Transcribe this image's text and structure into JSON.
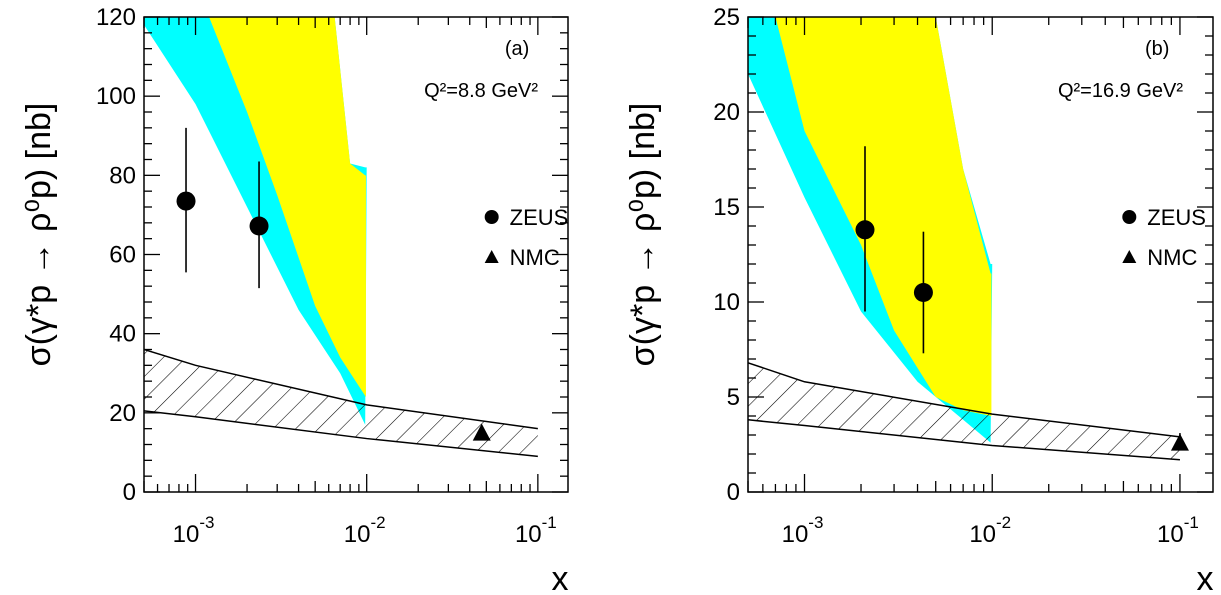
{
  "chart_data": [
    {
      "type": "scatter",
      "panel": "(a)",
      "annotation": "Q²=8.8 GeV²",
      "xlabel": "x",
      "ylabel": "σ(γ*p → ρ⁰p) [nb]",
      "xscale": "log",
      "xlim": [
        0.0005,
        0.15
      ],
      "ylim": [
        0,
        120
      ],
      "xticks": [
        0.001,
        0.01,
        0.1
      ],
      "xtick_labels": [
        [
          "10",
          "-3"
        ],
        [
          "10",
          "-2"
        ],
        [
          "10",
          "-1"
        ]
      ],
      "yticks": [
        0,
        20,
        40,
        60,
        80,
        100,
        120
      ],
      "ytick_labels": [
        "0",
        "20",
        "40",
        "60",
        "80",
        "100",
        "120"
      ],
      "legend_position": "right",
      "legend": [
        {
          "name": "ZEUS",
          "marker": "circle"
        },
        {
          "name": "NMC",
          "marker": "triangle"
        }
      ],
      "series": [
        {
          "name": "ZEUS",
          "marker": "circle",
          "points": [
            {
              "x": 0.00088,
              "y": 73.5,
              "ylo": 55.5,
              "yhi": 92
            },
            {
              "x": 0.00235,
              "y": 67.2,
              "ylo": 51.5,
              "yhi": 83.5
            }
          ]
        },
        {
          "name": "NMC",
          "marker": "triangle",
          "points": [
            {
              "x": 0.047,
              "y": 15,
              "ylo": 14,
              "yhi": 16
            }
          ]
        }
      ],
      "bands": [
        {
          "fill": "#00ffff",
          "upper": [
            [
              0.0005,
              120
            ],
            [
              0.001,
              120
            ],
            [
              0.0065,
              120
            ],
            [
              0.008,
              83
            ],
            [
              0.0098,
              82
            ],
            [
              0.01,
              82
            ]
          ],
          "lower": [
            [
              0.0005,
              118
            ],
            [
              0.001,
              98
            ],
            [
              0.002,
              72
            ],
            [
              0.004,
              46
            ],
            [
              0.007,
              30
            ],
            [
              0.0098,
              17
            ]
          ]
        },
        {
          "fill": "#ffff00",
          "upper": [
            [
              0.0012,
              120
            ],
            [
              0.0065,
              120
            ],
            [
              0.008,
              83
            ],
            [
              0.0098,
              80
            ],
            [
              0.0099,
              80
            ]
          ],
          "lower": [
            [
              0.0012,
              120
            ],
            [
              0.002,
              96
            ],
            [
              0.003,
              75
            ],
            [
              0.005,
              47
            ],
            [
              0.007,
              34
            ],
            [
              0.0099,
              24
            ]
          ]
        },
        {
          "fill": "hatch",
          "upper": [
            [
              0.0005,
              36
            ],
            [
              0.001,
              32
            ],
            [
              0.01,
              22
            ],
            [
              0.1,
              16
            ]
          ],
          "lower": [
            [
              0.0005,
              20.5
            ],
            [
              0.001,
              19
            ],
            [
              0.01,
              13.5
            ],
            [
              0.1,
              9
            ]
          ]
        }
      ]
    },
    {
      "type": "scatter",
      "panel": "(b)",
      "annotation": "Q²=16.9 GeV²",
      "xlabel": "x",
      "ylabel": "σ(γ*p → ρ⁰p) [nb]",
      "xscale": "log",
      "xlim": [
        0.0005,
        0.15
      ],
      "ylim": [
        0,
        25
      ],
      "xticks": [
        0.001,
        0.01,
        0.1
      ],
      "xtick_labels": [
        [
          "10",
          "-3"
        ],
        [
          "10",
          "-2"
        ],
        [
          "10",
          "-1"
        ]
      ],
      "yticks": [
        0,
        5,
        10,
        15,
        20,
        25
      ],
      "ytick_labels": [
        "0",
        "5",
        "10",
        "15",
        "20",
        "25"
      ],
      "legend_position": "right",
      "legend": [
        {
          "name": "ZEUS",
          "marker": "circle"
        },
        {
          "name": "NMC",
          "marker": "triangle"
        }
      ],
      "series": [
        {
          "name": "ZEUS",
          "marker": "circle",
          "points": [
            {
              "x": 0.0021,
              "y": 13.8,
              "ylo": 9.5,
              "yhi": 18.2
            },
            {
              "x": 0.0043,
              "y": 10.5,
              "ylo": 7.3,
              "yhi": 13.7
            }
          ]
        },
        {
          "name": "NMC",
          "marker": "triangle",
          "points": [
            {
              "x": 0.1,
              "y": 2.6,
              "ylo": 2.3,
              "yhi": 3.1
            }
          ]
        }
      ],
      "bands": [
        {
          "fill": "#00ffff",
          "upper": [
            [
              0.0005,
              25
            ],
            [
              0.001,
              25
            ],
            [
              0.005,
              25
            ],
            [
              0.007,
              17
            ],
            [
              0.0098,
              12
            ],
            [
              0.01,
              12
            ]
          ],
          "lower": [
            [
              0.0005,
              22
            ],
            [
              0.001,
              15.5
            ],
            [
              0.002,
              9.5
            ],
            [
              0.004,
              5.8
            ],
            [
              0.007,
              3.8
            ],
            [
              0.0098,
              2.6
            ]
          ]
        },
        {
          "fill": "#ffff00",
          "upper": [
            [
              0.0007,
              25
            ],
            [
              0.005,
              25
            ],
            [
              0.007,
              17
            ],
            [
              0.0098,
              11.5
            ],
            [
              0.0099,
              11.5
            ]
          ],
          "lower": [
            [
              0.0007,
              25
            ],
            [
              0.001,
              19
            ],
            [
              0.002,
              13
            ],
            [
              0.003,
              8.5
            ],
            [
              0.005,
              5
            ],
            [
              0.007,
              4.3
            ],
            [
              0.0099,
              4
            ]
          ]
        },
        {
          "fill": "hatch",
          "upper": [
            [
              0.0005,
              6.8
            ],
            [
              0.001,
              5.8
            ],
            [
              0.01,
              4.1
            ],
            [
              0.1,
              2.9
            ]
          ],
          "lower": [
            [
              0.0005,
              3.8
            ],
            [
              0.001,
              3.5
            ],
            [
              0.01,
              2.45
            ],
            [
              0.1,
              1.7
            ]
          ]
        }
      ]
    }
  ]
}
